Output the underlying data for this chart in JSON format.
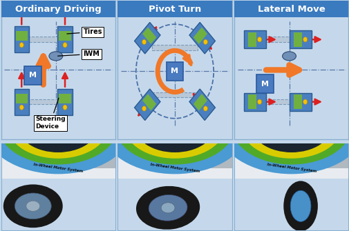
{
  "title_bg": "#3a7abf",
  "title_text_color": "#ffffff",
  "panel_bg": "#c5d8eb",
  "panel_border": "#8ab0d0",
  "titles": [
    "Ordinary Driving",
    "Pivot Turn",
    "Lateral Move"
  ],
  "title_fontsize": 9.5,
  "wheel_blue_outer": "#4a7fbf",
  "wheel_blue_dark": "#2a5a90",
  "wheel_green": "#70b040",
  "wheel_yellow_dot": "#f8c000",
  "red_arrow": "#dd2020",
  "orange_arrow": "#f07828",
  "label_bg": "#ffffff",
  "label_border": "#333333",
  "dashed_line_color": "#5878a8",
  "M_box_bg": "#4a7abf",
  "M_box_border": "#2a5a9f",
  "axle_fill": "#b8c8d8",
  "axle_edge": "#7a9ab8",
  "pivot_circle_color": "#4a70a8",
  "figsize": [
    5.06,
    3.35
  ],
  "dpi": 100,
  "iwm_color": "#7090b8",
  "photo_bg": "#c8d8e8",
  "photo_white": "#e8ecf0",
  "photo_blue": "#4a9ad4",
  "photo_green": "#50aa28",
  "photo_yellow": "#d8cc00",
  "photo_black": "#181818",
  "photo_rim": "#7090a8",
  "photo_darkgray": "#505860"
}
